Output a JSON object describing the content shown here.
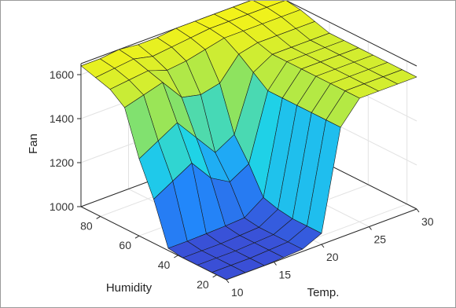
{
  "chart_data": {
    "type": "surface",
    "title": "",
    "zlabel": "Fan",
    "xlabel": "Temp.",
    "ylabel": "Humidity",
    "x_ticks": [
      10,
      15,
      20,
      25,
      30
    ],
    "y_ticks": [
      20,
      40,
      60,
      80
    ],
    "z_ticks": [
      1000,
      1200,
      1400,
      1600
    ],
    "xlim": [
      10,
      30
    ],
    "ylim": [
      15,
      90
    ],
    "zlim": [
      1000,
      1650
    ],
    "grid": true,
    "colormap": [
      "#3a4fd6",
      "#1f8fff",
      "#1fd3e6",
      "#8ee35f",
      "#f2f21a"
    ],
    "x": [
      10,
      12,
      14,
      16,
      18,
      20,
      22,
      24,
      26,
      28,
      30
    ],
    "y": [
      15,
      22.5,
      30,
      37.5,
      45,
      52.5,
      60,
      67.5,
      75,
      82.5,
      90
    ],
    "z": [
      [
        1000,
        1000,
        1000,
        1005,
        1010,
        1050,
        1500,
        1600,
        1600,
        1600,
        1600
      ],
      [
        1000,
        1000,
        1000,
        1005,
        1010,
        1050,
        1500,
        1600,
        1600,
        1600,
        1600
      ],
      [
        1000,
        1000,
        1000,
        1005,
        1010,
        1050,
        1500,
        1600,
        1600,
        1600,
        1600
      ],
      [
        1000,
        1000,
        1000,
        1005,
        1010,
        1060,
        1500,
        1600,
        1600,
        1600,
        1600
      ],
      [
        1010,
        1010,
        1012,
        1015,
        1020,
        1080,
        1500,
        1600,
        1600,
        1600,
        1600
      ],
      [
        1200,
        1250,
        1300,
        1200,
        1150,
        1200,
        1500,
        1600,
        1600,
        1600,
        1600
      ],
      [
        1350,
        1400,
        1450,
        1350,
        1250,
        1300,
        1550,
        1600,
        1600,
        1600,
        1600
      ],
      [
        1550,
        1575,
        1600,
        1500,
        1480,
        1500,
        1600,
        1620,
        1620,
        1620,
        1620
      ],
      [
        1600,
        1610,
        1620,
        1590,
        1600,
        1620,
        1640,
        1640,
        1640,
        1640,
        1640
      ],
      [
        1620,
        1630,
        1640,
        1620,
        1630,
        1640,
        1650,
        1650,
        1650,
        1650,
        1650
      ],
      [
        1640,
        1640,
        1650,
        1640,
        1640,
        1650,
        1650,
        1650,
        1650,
        1650,
        1650
      ]
    ]
  }
}
